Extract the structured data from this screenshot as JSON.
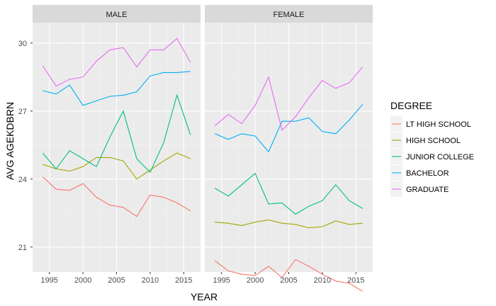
{
  "chart_data": {
    "type": "line",
    "facet_variable": "SEX",
    "xlabel": "YEAR",
    "ylabel": "AVG AGEKDBRN",
    "xlim": [
      1992.5,
      2017.5
    ],
    "ylim": [
      19.9,
      30.9
    ],
    "x_ticks": [
      1995,
      2000,
      2005,
      2010,
      2015
    ],
    "y_ticks": [
      21,
      24,
      27,
      30
    ],
    "x": [
      1994,
      1996,
      1998,
      2000,
      2002,
      2004,
      2006,
      2008,
      2010,
      2012,
      2014,
      2016
    ],
    "legend": {
      "title": "DEGREE",
      "position": "right"
    },
    "series_names": [
      "LT HIGH SCHOOL",
      "HIGH SCHOOL",
      "JUNIOR COLLEGE",
      "BACHELOR",
      "GRADUATE"
    ],
    "colors": [
      "#F8766D",
      "#A3A500",
      "#00BF7D",
      "#00B0F6",
      "#E76BF3"
    ],
    "panels": [
      {
        "label": "MALE",
        "series": [
          {
            "name": "LT HIGH SCHOOL",
            "values": [
              24.1,
              23.55,
              23.5,
              23.8,
              23.2,
              22.85,
              22.75,
              22.35,
              23.3,
              23.2,
              22.95,
              22.6
            ]
          },
          {
            "name": "HIGH SCHOOL",
            "values": [
              24.65,
              24.45,
              24.35,
              24.55,
              24.95,
              24.95,
              24.8,
              24.0,
              24.4,
              24.8,
              25.15,
              24.9
            ]
          },
          {
            "name": "JUNIOR COLLEGE",
            "values": [
              25.15,
              24.45,
              25.25,
              24.9,
              24.55,
              25.85,
              27.0,
              24.9,
              24.3,
              25.6,
              27.7,
              25.95
            ]
          },
          {
            "name": "BACHELOR",
            "values": [
              27.9,
              27.75,
              28.15,
              27.25,
              27.45,
              27.65,
              27.7,
              27.85,
              28.55,
              28.7,
              28.7,
              28.75
            ]
          },
          {
            "name": "GRADUATE",
            "values": [
              29.0,
              28.1,
              28.4,
              28.5,
              29.2,
              29.7,
              29.8,
              28.95,
              29.7,
              29.7,
              30.2,
              29.15
            ]
          }
        ]
      },
      {
        "label": "FEMALE",
        "series": [
          {
            "name": "LT HIGH SCHOOL",
            "values": [
              20.4,
              19.95,
              19.8,
              19.75,
              20.15,
              19.65,
              20.45,
              20.15,
              19.8,
              19.5,
              19.4,
              19.05
            ]
          },
          {
            "name": "HIGH SCHOOL",
            "values": [
              22.1,
              22.05,
              21.95,
              22.1,
              22.2,
              22.05,
              22.0,
              21.85,
              21.9,
              22.15,
              22.0,
              22.05
            ]
          },
          {
            "name": "JUNIOR COLLEGE",
            "values": [
              23.6,
              23.25,
              23.75,
              24.25,
              22.9,
              22.95,
              22.45,
              22.8,
              23.05,
              23.75,
              23.05,
              22.7
            ]
          },
          {
            "name": "BACHELOR",
            "values": [
              26.0,
              25.75,
              26.0,
              25.9,
              25.2,
              26.55,
              26.55,
              26.7,
              26.1,
              26.0,
              26.6,
              27.3
            ]
          },
          {
            "name": "GRADUATE",
            "values": [
              26.35,
              26.85,
              26.45,
              27.25,
              28.5,
              26.15,
              26.75,
              27.6,
              28.35,
              28.0,
              28.25,
              28.95
            ]
          }
        ]
      }
    ]
  }
}
